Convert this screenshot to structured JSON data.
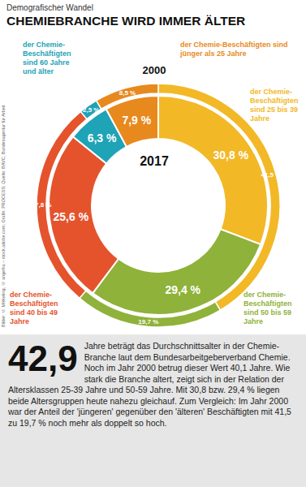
{
  "header": {
    "kicker": "Demografischer Wandel",
    "title": "CHEMIEBRANCHE WIRD IMMER ÄLTER"
  },
  "chart_data": {
    "type": "pie",
    "categories": [
      "der Chemie-Beschäftigten sind 25 bis 39 Jahre",
      "der Chemie-Beschäftigten sind 50 bis 59 Jahre",
      "der Chemie-Beschäftigten sind 40 bis 49 Jahre",
      "der Chemie-Beschäftigten sind 60 Jahre und älter",
      "der Chemie-Beschäftigten sind jünger als 25 Jahre"
    ],
    "colors": [
      "#f2b826",
      "#8fb23a",
      "#e5532d",
      "#1fa3b6",
      "#e8891e"
    ],
    "data_labels": true,
    "series": [
      {
        "name": "2000",
        "values": [
          41.5,
          19.7,
          27.8,
          2.5,
          8.5
        ],
        "value_labels": [
          "41,5 %",
          "19,7 %",
          "27,8 %",
          "2,5 %",
          "8,5 %"
        ]
      },
      {
        "name": "2017",
        "values": [
          30.8,
          29.4,
          25.6,
          6.3,
          7.9
        ],
        "value_labels": [
          "30,8 %",
          "29,4 %",
          "25,6 %",
          "6,3 %",
          "7,9 %"
        ]
      }
    ]
  },
  "summary": {
    "number": "42,9",
    "text": "Jahre beträgt das Durchschnittsalter in der Chemie-Branche laut dem Bundesarbeitgeberverband Chemie. Noch im Jahr 2000 betrug dieser Wert 40,1 Jahre. Wie stark die Branche altert, zeigt sich in der Relation der Altersklassen 25-39 Jahre und 50-59 Jahre. Mit 30,8 bzw. 29,4 % liegen beide Altersgruppen heute nahezu gleichauf. Zum Vergleich: Im Jahr 2000 war der Anteil der 'jüngeren' gegenüber den 'älteren' Beschäftigten mit 41,5 zu 19,7 % noch mehr als doppelt so hoch."
  },
  "credit": "Bilder: © Mikkeling, © angelha – stock.adobe.com; Grafik: PROCESS; Quelle: BAVC, Bundesagentur für Arbeit"
}
